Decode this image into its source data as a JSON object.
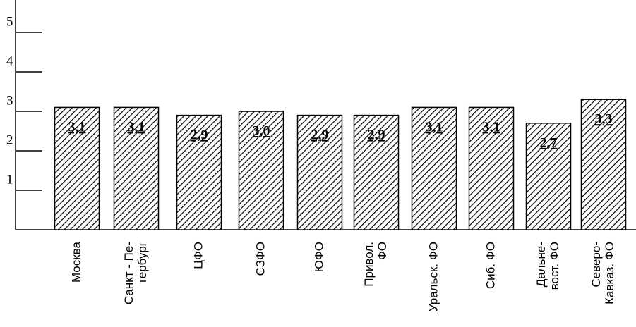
{
  "chart_data": {
    "type": "bar",
    "title": "",
    "xlabel": "",
    "ylabel": "",
    "ylim": [
      0,
      5.5
    ],
    "yticks": [
      1,
      2,
      3,
      4,
      5
    ],
    "grid": false,
    "legend": "none",
    "bar_pattern": "diagonal-hatch",
    "bar_color": "#000000",
    "categories": [
      "Москва",
      "Санкт - Пе-\nтербург",
      "ЦФО",
      "СЗФО",
      "ЮФО",
      "Привол.\nФО",
      "Уральск. ФО",
      "Сиб. ФО",
      "Дальне-\nвост. ФО",
      "Северо-\nКавказ. ФО"
    ],
    "values": [
      3.1,
      3.1,
      2.9,
      3.0,
      2.9,
      2.9,
      3.1,
      3.1,
      2.7,
      3.3
    ],
    "data_labels": [
      "3,1",
      "3,1",
      "2,9",
      "3,0",
      "2,9",
      "2,9",
      "3,1",
      "3,1",
      "2,7",
      "3,3"
    ]
  }
}
